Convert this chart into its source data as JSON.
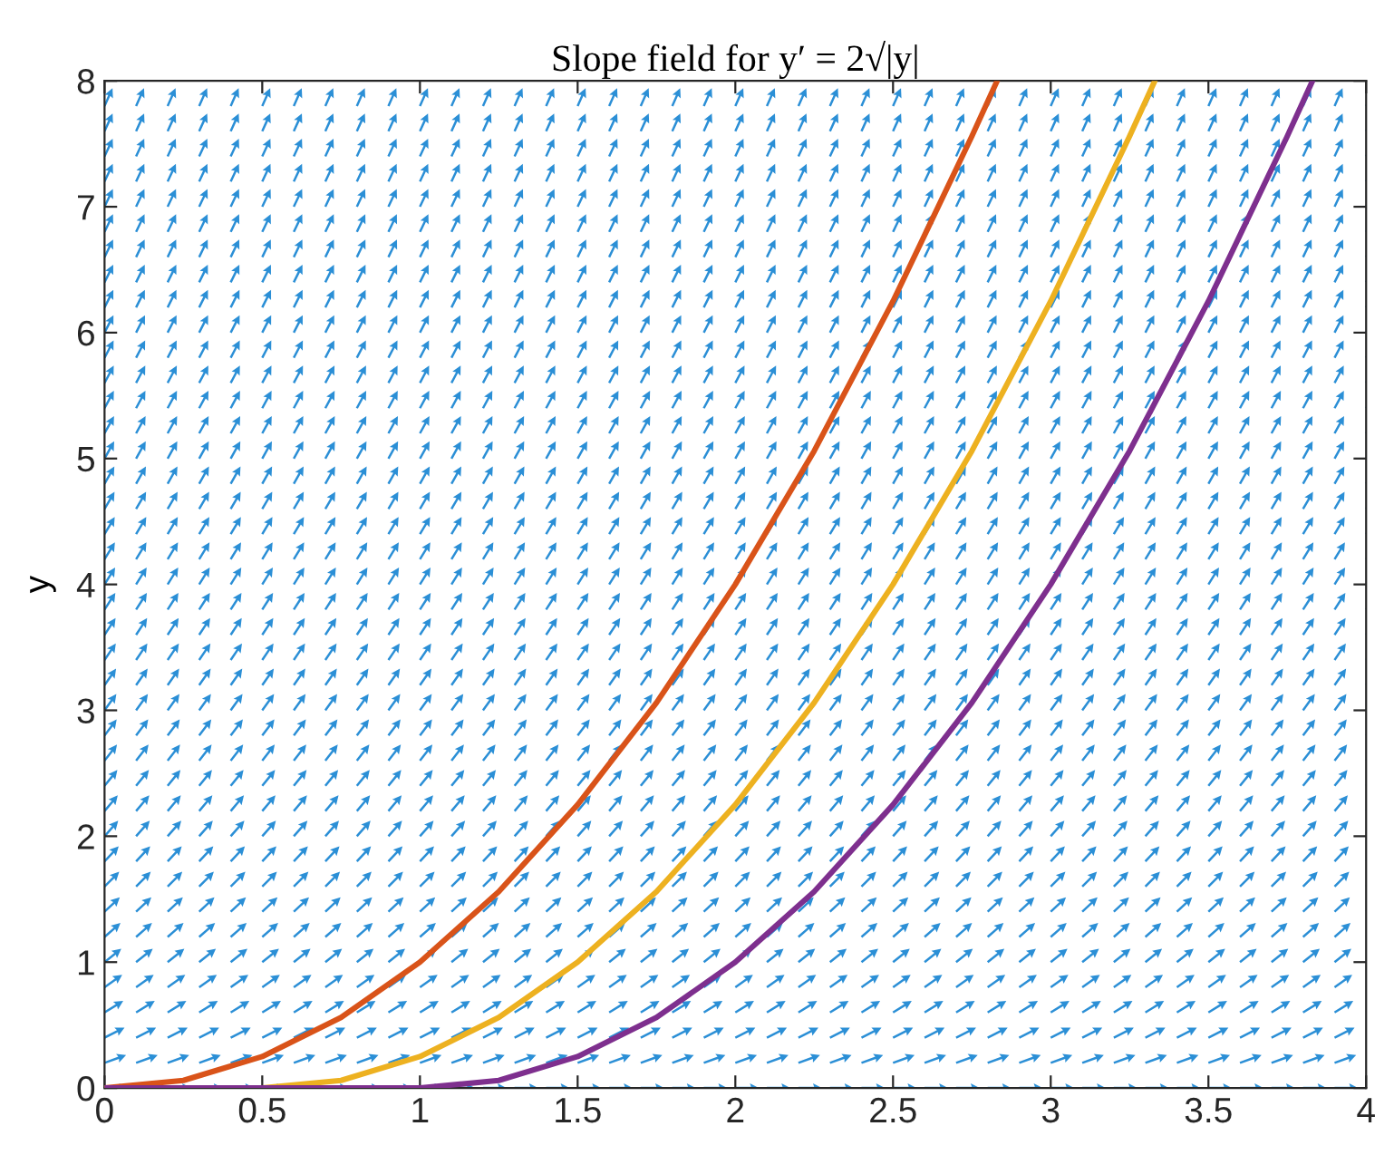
{
  "chart_data": {
    "type": "line",
    "title": "Slope field for y′ = 2√|y|",
    "ylabel": "y",
    "xlim": [
      0,
      4
    ],
    "ylim": [
      0,
      8
    ],
    "xticks": [
      0,
      0.5,
      1,
      1.5,
      2,
      2.5,
      3,
      3.5,
      4
    ],
    "yticks": [
      0,
      1,
      2,
      3,
      4,
      5,
      6,
      7,
      8
    ],
    "grid": false,
    "marker": "none",
    "line_style": "solid",
    "series": [
      {
        "color": "#d95319",
        "x": [
          0,
          0.25,
          0.5,
          0.75,
          1,
          1.25,
          1.5,
          1.75,
          2,
          2.25,
          2.5,
          2.75,
          2.83
        ],
        "values": [
          0,
          0.06,
          0.25,
          0.56,
          1,
          1.56,
          2.25,
          3.06,
          4,
          5.06,
          6.25,
          7.56,
          8
        ]
      },
      {
        "color": "#edb120",
        "x": [
          0,
          0.5,
          0.75,
          1,
          1.25,
          1.5,
          1.75,
          2,
          2.25,
          2.5,
          2.75,
          3,
          3.25,
          3.33
        ],
        "values": [
          0,
          0,
          0.06,
          0.25,
          0.56,
          1,
          1.56,
          2.25,
          3.06,
          4,
          5.06,
          6.25,
          7.56,
          8
        ]
      },
      {
        "color": "#7e2f8e",
        "x": [
          0,
          1,
          1.25,
          1.5,
          1.75,
          2,
          2.25,
          2.5,
          2.75,
          3,
          3.25,
          3.5,
          3.75,
          3.83
        ],
        "values": [
          0,
          0,
          0.06,
          0.25,
          0.56,
          1,
          1.56,
          2.25,
          3.06,
          4,
          5.06,
          6.25,
          7.56,
          8
        ]
      }
    ]
  }
}
